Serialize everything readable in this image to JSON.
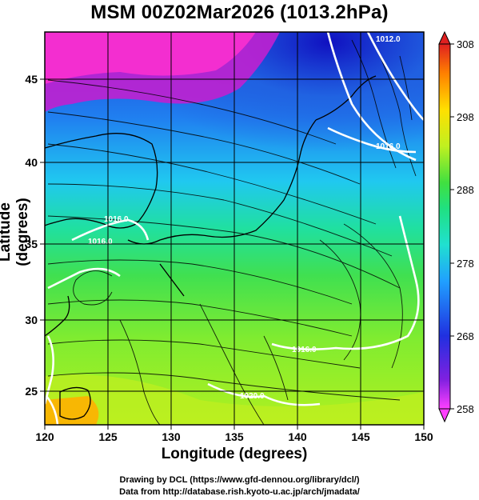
{
  "title": "MSM 00Z02Mar2026 (1013.2hPa)",
  "axes": {
    "xlabel": "Longitude (degrees)",
    "ylabel": "Latitude  (degrees)",
    "xlim": [
      120,
      150
    ],
    "ylim": [
      22.5,
      47.5
    ],
    "xticks": [
      "120",
      "125",
      "130",
      "135",
      "140",
      "145",
      "150"
    ],
    "yticks": [
      "25",
      "30",
      "35",
      "40",
      "45"
    ]
  },
  "colorbar": {
    "ticks": [
      "308",
      "298",
      "288",
      "278",
      "268",
      "258"
    ],
    "min": 258,
    "max": 308,
    "colors": [
      "#ff40ff",
      "#2030e0",
      "#20c0ff",
      "#20e0a0",
      "#40e040",
      "#c0f020",
      "#ffe000",
      "#ff8000",
      "#e02020"
    ]
  },
  "contour_labels": [
    "1012.0",
    "1016.0",
    "1016.0",
    "1016.0",
    "1016.0",
    "1020.0"
  ],
  "credits": {
    "line1": "Drawing by DCL (https://www.gfd-dennou.org/library/dcl/)",
    "line2": "Data from http://database.rish.kyoto-u.ac.jp/arch/jmadata/"
  }
}
